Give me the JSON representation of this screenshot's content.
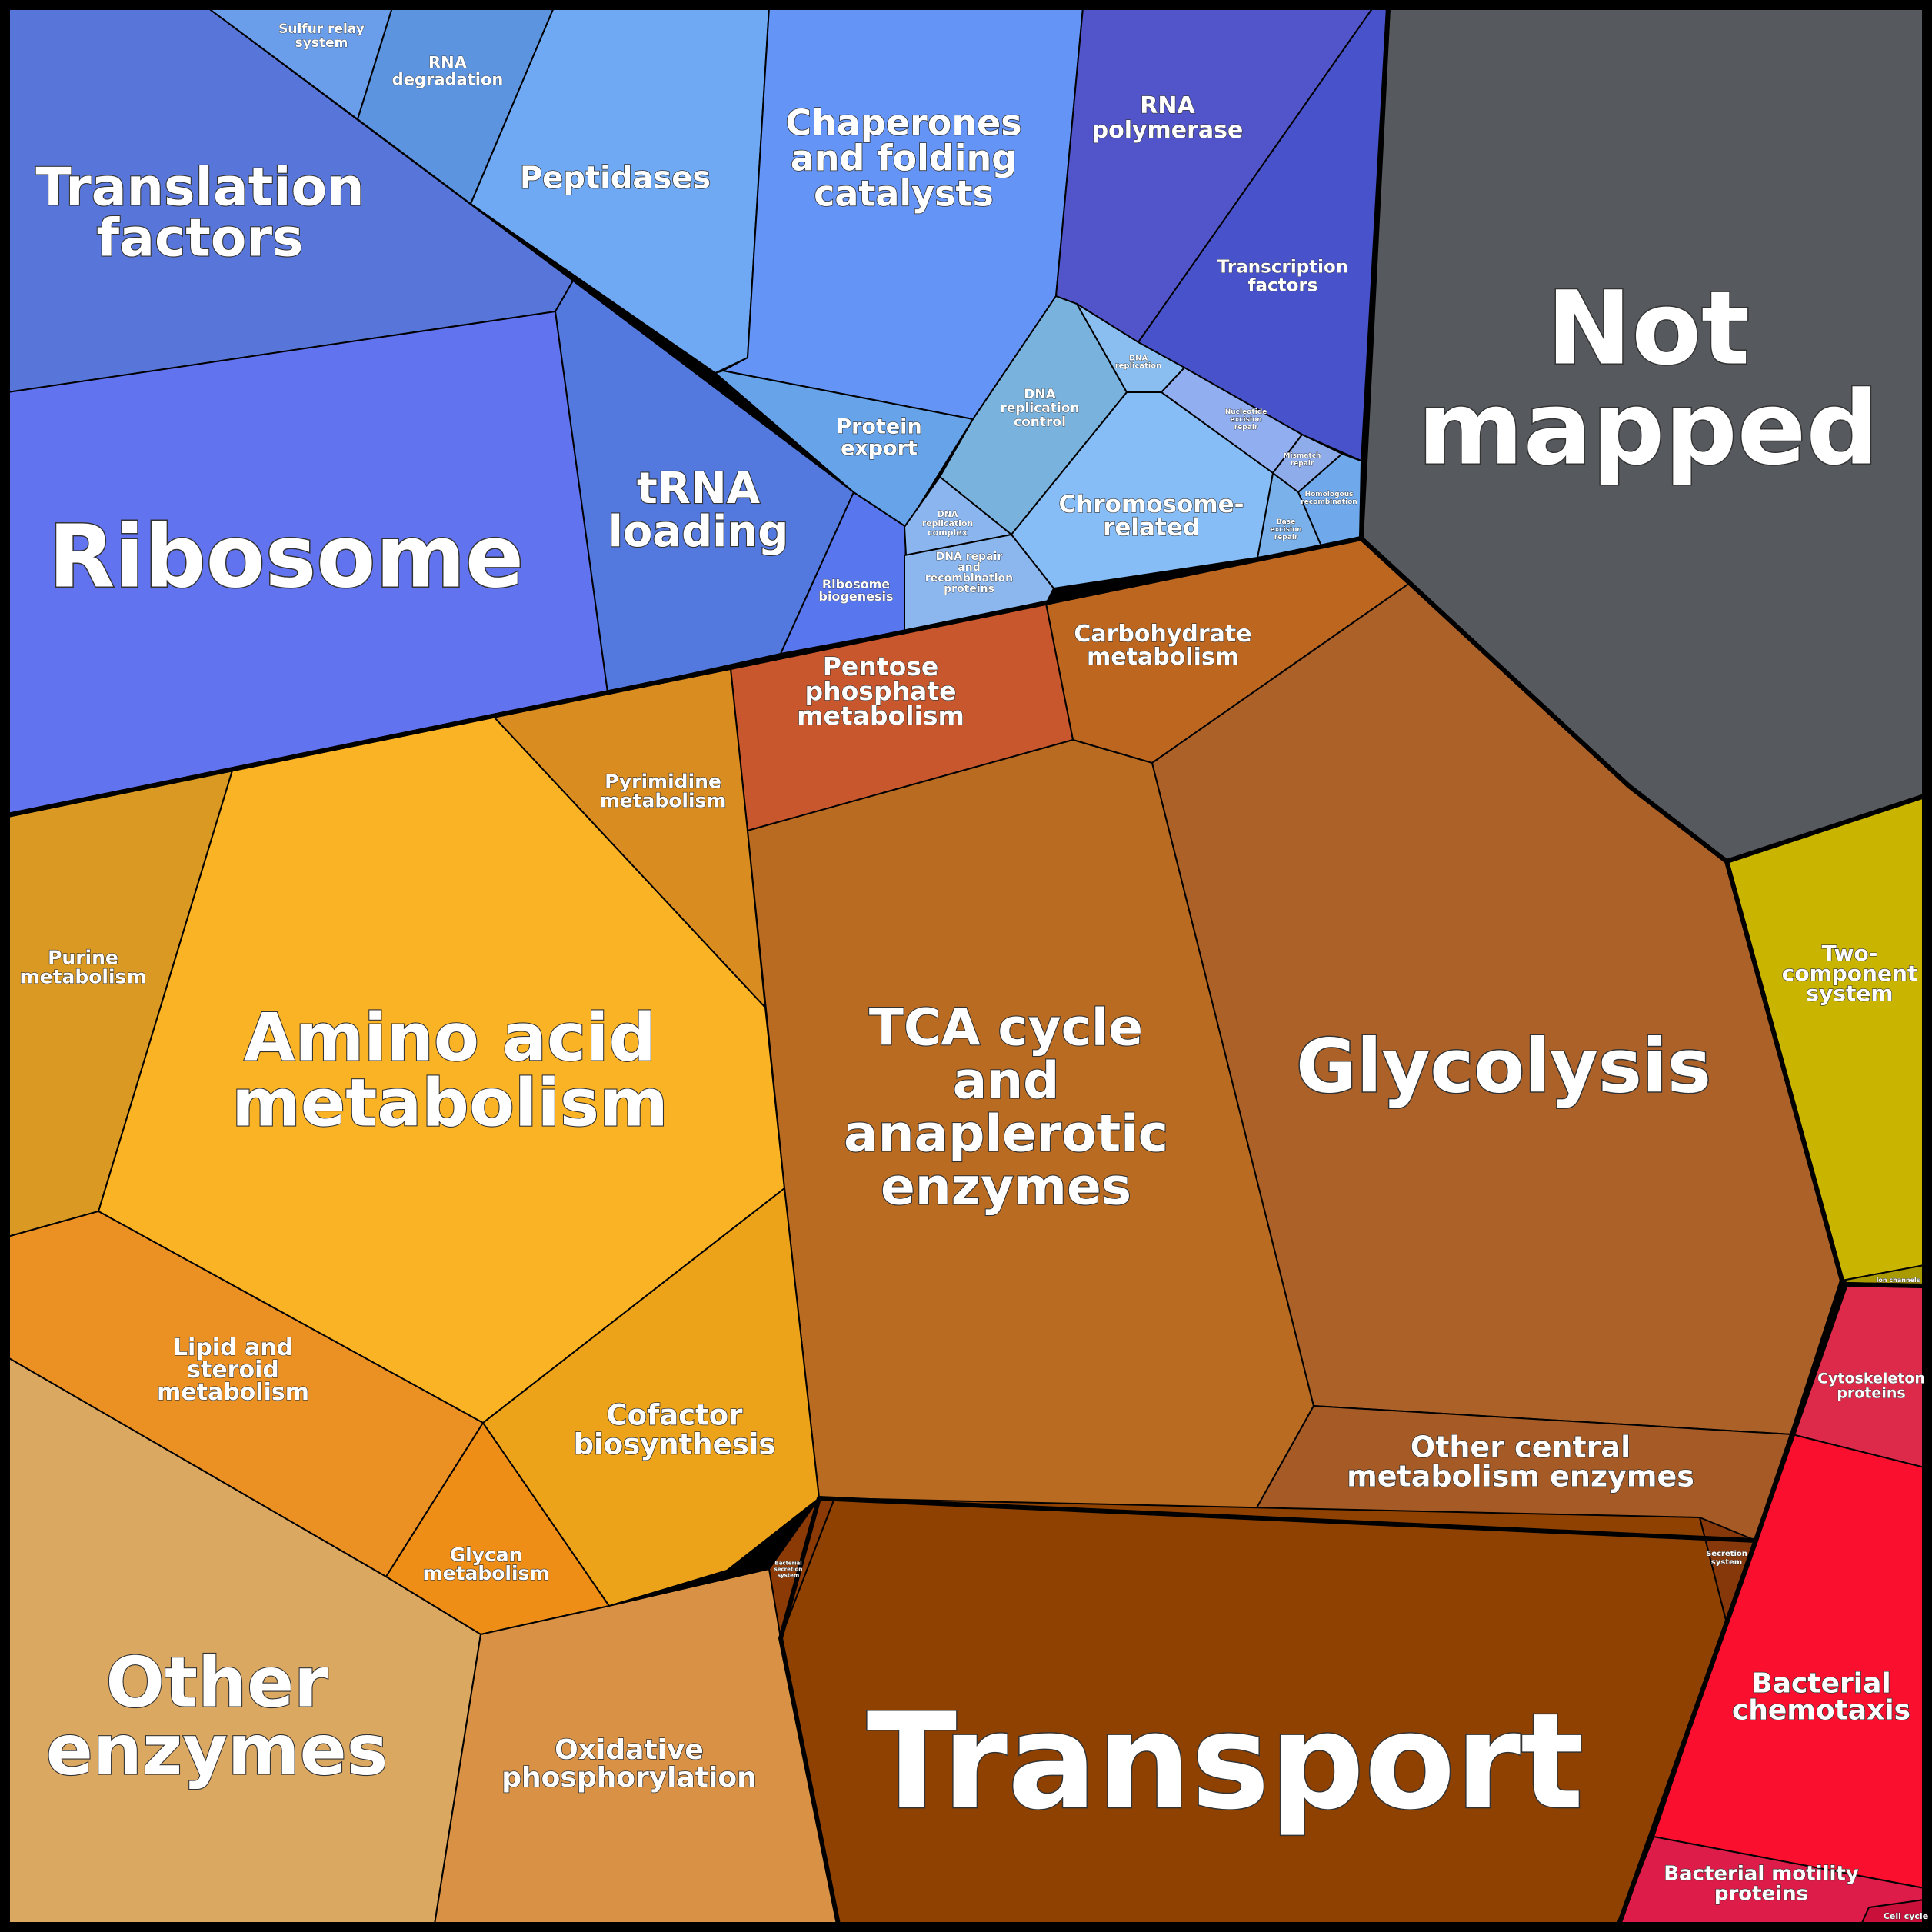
{
  "colors": {
    "background": "#000000",
    "label_fill": "#ffffff",
    "label_outline": "#333333"
  },
  "groups": [
    {
      "id": "genetic_information_processing",
      "color_family": "blue"
    },
    {
      "id": "not_mapped",
      "color_family": "gray"
    },
    {
      "id": "metabolism",
      "color_family": "orange-brown"
    },
    {
      "id": "environmental_information_processing",
      "color_family": "brown"
    },
    {
      "id": "signal_transduction",
      "color_family": "olive"
    },
    {
      "id": "cellular_processes",
      "color_family": "red"
    }
  ],
  "cells": [
    {
      "id": "translation_factors",
      "label": "Translation factors",
      "color": "#5876DA"
    },
    {
      "id": "ribosome",
      "label": "Ribosome",
      "color": "#6273EF"
    },
    {
      "id": "trna_loading",
      "label": "tRNA loading",
      "color": "#5378DE"
    },
    {
      "id": "ribosome_biogenesis",
      "label": "Ribosome biogenesis",
      "color": "#5876EE"
    },
    {
      "id": "sulfur_relay",
      "label": "Sulfur relay system",
      "color": "#6A9EEB"
    },
    {
      "id": "rna_degradation",
      "label": "RNA degradation",
      "color": "#5C94DF"
    },
    {
      "id": "peptidases",
      "label": "Peptidases",
      "color": "#6FA9F3"
    },
    {
      "id": "chaperones",
      "label": "Chaperones and folding catalysts",
      "color": "#6494F6"
    },
    {
      "id": "protein_export",
      "label": "Protein export",
      "color": "#66A3E9"
    },
    {
      "id": "rna_polymerase",
      "label": "RNA polymerase",
      "color": "#5155C9"
    },
    {
      "id": "transcription_factors",
      "label": "Transcription factors",
      "color": "#4752CB"
    },
    {
      "id": "dna_replication_control",
      "label": "DNA replication control",
      "color": "#7AB2DE"
    },
    {
      "id": "dna_replication",
      "label": "DNA replication",
      "color": "#8ABEF0"
    },
    {
      "id": "nucleotide_excision_repair",
      "label": "Nucleotide excision repair",
      "color": "#90AEF0"
    },
    {
      "id": "mismatch_repair",
      "label": "Mismatch repair",
      "color": "#8EABEA"
    },
    {
      "id": "homologous_recombination",
      "label": "Homologous recombination",
      "color": "#6FA9EC"
    },
    {
      "id": "base_excision_repair",
      "label": "Base excision repair",
      "color": "#7BB1EA"
    },
    {
      "id": "chromosome_related",
      "label": "Chromosome-related",
      "color": "#87BDF7"
    },
    {
      "id": "dna_replication_complex",
      "label": "DNA replication complex",
      "color": "#8AB5EE"
    },
    {
      "id": "dna_repair",
      "label": "DNA repair and recombination proteins",
      "color": "#8BB6EE"
    },
    {
      "id": "not_mapped",
      "label": "Not mapped",
      "color": "#565A5E"
    },
    {
      "id": "carbohydrate_metabolism",
      "label": "Carbohydrate metabolism",
      "color": "#BC6620"
    },
    {
      "id": "pentose_phosphate",
      "label": "Pentose phosphate metabolism",
      "color": "#C8572D"
    },
    {
      "id": "pyrimidine_metabolism",
      "label": "Pyrimidine metabolism",
      "color": "#D98C20"
    },
    {
      "id": "purine_metabolism",
      "label": "Purine metabolism",
      "color": "#D99922"
    },
    {
      "id": "amino_acid_metabolism",
      "label": "Amino acid metabolism",
      "color": "#FBB326"
    },
    {
      "id": "tca_cycle",
      "label": "TCA cycle and anaplerotic enzymes",
      "color": "#BA6B22"
    },
    {
      "id": "glycolysis",
      "label": "Glycolysis",
      "color": "#AC6128"
    },
    {
      "id": "other_central",
      "label": "Other central metabolism enzymes",
      "color": "#A65B26"
    },
    {
      "id": "lipid_steroid",
      "label": "Lipid and steroid metabolism",
      "color": "#EB9022"
    },
    {
      "id": "glycan_metabolism",
      "label": "Glycan metabolism",
      "color": "#EE8E16"
    },
    {
      "id": "cofactor_biosynthesis",
      "label": "Cofactor biosynthesis",
      "color": "#ECA31A"
    },
    {
      "id": "other_enzymes",
      "label": "Other enzymes",
      "color": "#DBA862"
    },
    {
      "id": "oxidative_phosphorylation",
      "label": "Oxidative phosphorylation",
      "color": "#D99245"
    },
    {
      "id": "transport",
      "label": "Transport",
      "color": "#8F4102"
    },
    {
      "id": "bacterial_secretion",
      "label": "Bacterial secretion system",
      "color": "#8B3A06"
    },
    {
      "id": "secretion_system",
      "label": "Secretion system",
      "color": "#86380A"
    },
    {
      "id": "two_component",
      "label": "Two-component system",
      "color": "#C9B400"
    },
    {
      "id": "ion_channels",
      "label": "Ion channels",
      "color": "#A99A00"
    },
    {
      "id": "cytoskeleton",
      "label": "Cytoskeleton proteins",
      "color": "#DD2A4A"
    },
    {
      "id": "bacterial_chemotaxis",
      "label": "Bacterial chemotaxis",
      "color": "#FB0F2E"
    },
    {
      "id": "bacterial_motility",
      "label": "Bacterial motility proteins",
      "color": "#DE1C4A"
    },
    {
      "id": "cell_cycle",
      "label": "Cell cycle",
      "color": "#C8103A"
    }
  ]
}
